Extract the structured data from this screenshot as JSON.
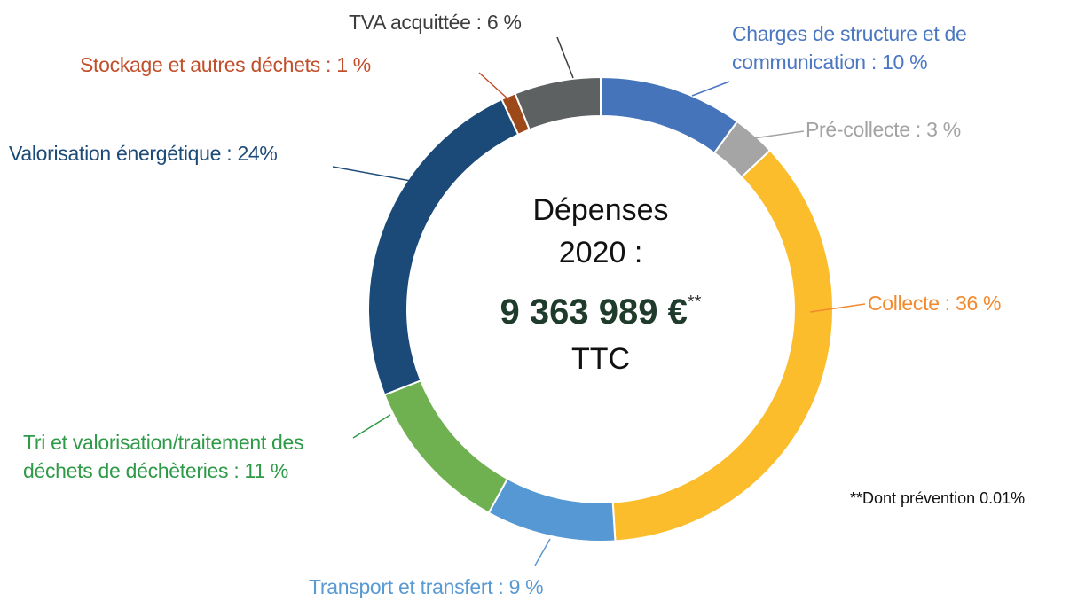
{
  "chart_data": {
    "type": "pie",
    "donut": true,
    "categories": [
      "Charges de structure et de communication :",
      "Pré-collecte :",
      "Collecte :",
      "Transport et transfert :",
      "Tri  et valorisation/traitement des déchets de déchèteries :",
      "Valorisation énergétique :",
      "Stockage et autres déchets :",
      "TVA  acquittée :"
    ],
    "values": [
      10,
      3,
      36,
      9,
      11,
      24,
      1,
      6
    ],
    "value_labels": [
      "10 %",
      "3 %",
      "36 %",
      "9 %",
      "11 %",
      "24%",
      "1 %",
      "6 %"
    ],
    "colors": [
      "#4674ba",
      "#a5a5a5",
      "#fbbd2b",
      "#5598d3",
      "#6fb050",
      "#1b4a79",
      "#9c4819",
      "#5d6162"
    ],
    "label_colors": [
      "#4a77c2",
      "#a3a3a3",
      "#f28a2e",
      "#5a9ad2",
      "#2f9a47",
      "#1d4b78",
      "#c14f2b",
      "#3d3d3d"
    ],
    "center_text": {
      "line1": "Dépenses",
      "line2": "2020 :",
      "amount": "9 363 989 €",
      "mark": "**",
      "line3": "TTC"
    },
    "footnote": "**Dont prévention 0.01%"
  }
}
